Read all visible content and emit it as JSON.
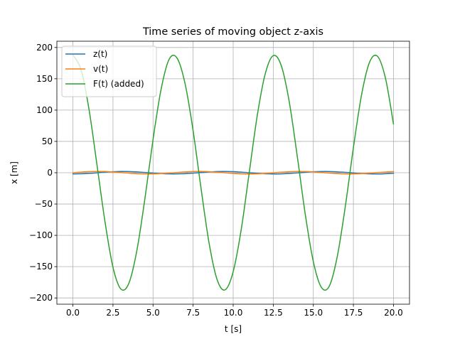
{
  "chart_data": {
    "type": "line",
    "title": "Time series of moving object z-axis",
    "xlabel": "t [s]",
    "ylabel": "x [m]",
    "xlim": [
      -1.0,
      21.0
    ],
    "ylim": [
      -210,
      210
    ],
    "xticks": [
      0.0,
      2.5,
      5.0,
      7.5,
      10.0,
      12.5,
      15.0,
      17.5,
      20.0
    ],
    "xtick_labels": [
      "0.0",
      "2.5",
      "5.0",
      "7.5",
      "10.0",
      "12.5",
      "15.0",
      "17.5",
      "20.0"
    ],
    "yticks": [
      -200,
      -150,
      -100,
      -50,
      0,
      50,
      100,
      150,
      200
    ],
    "ytick_labels": [
      "−200",
      "−150",
      "−100",
      "−50",
      "0",
      "50",
      "100",
      "150",
      "200"
    ],
    "grid": true,
    "legend_position": "top-left",
    "series": [
      {
        "name": "z(t)",
        "color": "#1f77b4",
        "x": [
          0,
          1,
          2,
          3,
          4,
          5,
          6,
          7,
          8,
          9,
          10,
          11,
          12,
          13,
          14,
          15,
          16,
          17,
          18,
          19,
          20
        ],
        "y": [
          -2.0,
          -1.1,
          0.8,
          2.0,
          1.3,
          -0.6,
          -1.9,
          -1.5,
          0.3,
          1.8,
          1.7,
          0.0,
          -1.7,
          -1.8,
          -0.3,
          1.5,
          1.9,
          0.6,
          -1.3,
          -2.0,
          -0.8
        ]
      },
      {
        "name": "v(t)",
        "color": "#ff7f0e",
        "x": [
          0,
          1,
          2,
          3,
          4,
          5,
          6,
          7,
          8,
          9,
          10,
          11,
          12,
          13,
          14,
          15,
          16,
          17,
          18,
          19,
          20
        ],
        "y": [
          0.0,
          1.7,
          1.8,
          0.3,
          -1.5,
          -1.9,
          -0.6,
          1.3,
          2.0,
          0.8,
          -1.1,
          -2.0,
          -1.1,
          0.8,
          2.0,
          1.3,
          -0.6,
          -1.9,
          -1.5,
          0.3,
          1.8
        ]
      },
      {
        "name": "F(t) (added)",
        "color": "#2ca02c",
        "x": [
          0.0,
          0.5,
          1.0,
          1.5,
          2.0,
          2.5,
          3.0,
          3.5,
          4.0,
          4.5,
          5.0,
          5.5,
          6.0,
          6.5,
          7.0,
          7.5,
          8.0,
          8.5,
          9.0,
          9.5,
          10.0,
          10.5,
          11.0,
          11.5,
          12.0,
          12.5,
          13.0,
          13.5,
          14.0,
          14.5,
          15.0,
          15.5,
          16.0,
          16.5,
          17.0,
          17.5,
          18.0,
          18.5,
          19.0,
          19.5,
          20.0
        ],
        "y": [
          188,
          165,
          102,
          13,
          -78,
          -151,
          -186,
          -176,
          -123,
          -40,
          53,
          133,
          181,
          183,
          142,
          67,
          -26,
          -113,
          -171,
          -187,
          -158,
          -91,
          0,
          91,
          158,
          187,
          171,
          113,
          26,
          -67,
          -142,
          -183,
          -181,
          -133,
          -53,
          40,
          123,
          176,
          186,
          151,
          78
        ]
      }
    ]
  }
}
